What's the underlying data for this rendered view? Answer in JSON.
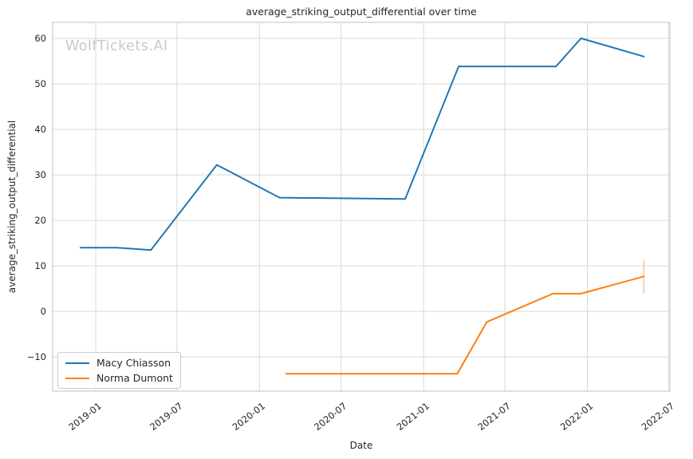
{
  "watermark": {
    "text": "WolfTickets.AI",
    "color": "#c9c9c9"
  },
  "style": {
    "grid_color": "#d9d9d9",
    "spine_color": "#cccccc",
    "text_color": "#262626",
    "background": "#ffffff"
  },
  "chart_data": {
    "type": "line",
    "title": "average_striking_output_differential over time",
    "xlabel": "Date",
    "ylabel": "average_striking_output_differential",
    "grid": true,
    "legend_position": "lower-left",
    "x_range": [
      "2018-09-27",
      "2022-07-04"
    ],
    "y_range": [
      -17.5,
      63.5
    ],
    "x_ticks": [
      {
        "date": "2019-01-01",
        "label": "2019-01"
      },
      {
        "date": "2019-07-01",
        "label": "2019-07"
      },
      {
        "date": "2020-01-01",
        "label": "2020-01"
      },
      {
        "date": "2020-07-01",
        "label": "2020-07"
      },
      {
        "date": "2021-01-01",
        "label": "2021-01"
      },
      {
        "date": "2021-07-01",
        "label": "2021-07"
      },
      {
        "date": "2022-01-01",
        "label": "2022-01"
      },
      {
        "date": "2022-07-01",
        "label": "2022-07"
      }
    ],
    "y_ticks": [
      {
        "value": -10,
        "label": "−10"
      },
      {
        "value": 0,
        "label": "0"
      },
      {
        "value": 10,
        "label": "10"
      },
      {
        "value": 20,
        "label": "20"
      },
      {
        "value": 30,
        "label": "30"
      },
      {
        "value": 40,
        "label": "40"
      },
      {
        "value": 50,
        "label": "50"
      },
      {
        "value": 60,
        "label": "60"
      }
    ],
    "series": [
      {
        "name": "Macy Chiasson",
        "color": "#1f77b4",
        "points": [
          {
            "date": "2018-11-28",
            "value": 14.0
          },
          {
            "date": "2019-02-17",
            "value": 14.0
          },
          {
            "date": "2019-05-04",
            "value": 13.5
          },
          {
            "date": "2019-09-28",
            "value": 32.2
          },
          {
            "date": "2020-02-15",
            "value": 25.0
          },
          {
            "date": "2020-11-21",
            "value": 24.7
          },
          {
            "date": "2021-03-20",
            "value": 53.8
          },
          {
            "date": "2021-10-23",
            "value": 53.8
          },
          {
            "date": "2021-12-18",
            "value": 60.0
          },
          {
            "date": "2022-05-07",
            "value": 56.0
          }
        ]
      },
      {
        "name": "Norma Dumont",
        "color": "#ff7f0e",
        "points": [
          {
            "date": "2020-02-29",
            "value": -13.7
          },
          {
            "date": "2021-03-17",
            "value": -13.7
          },
          {
            "date": "2021-05-22",
            "value": -2.3
          },
          {
            "date": "2021-10-16",
            "value": 3.9
          },
          {
            "date": "2021-12-18",
            "value": 3.9
          },
          {
            "date": "2022-05-07",
            "value": 7.7
          }
        ],
        "error_bar": {
          "date": "2022-05-07",
          "y_low": 3.9,
          "y_high": 11.4
        }
      }
    ]
  },
  "legend": {
    "items": [
      {
        "label": "Macy Chiasson",
        "color": "#1f77b4"
      },
      {
        "label": "Norma Dumont",
        "color": "#ff7f0e"
      }
    ]
  }
}
